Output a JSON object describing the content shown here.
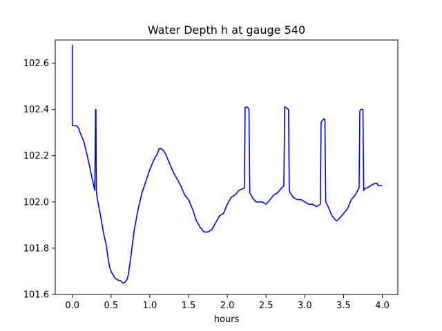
{
  "chart_data": {
    "type": "line",
    "title": "Water Depth h at gauge 540",
    "xlabel": "hours",
    "ylabel": "",
    "xlim": [
      -0.22,
      4.2
    ],
    "ylim": [
      101.6,
      102.7
    ],
    "xticks": [
      0.0,
      0.5,
      1.0,
      1.5,
      2.0,
      2.5,
      3.0,
      3.5,
      4.0
    ],
    "xtick_labels": [
      "0.0",
      "0.5",
      "1.0",
      "1.5",
      "2.0",
      "2.5",
      "3.0",
      "3.5",
      "4.0"
    ],
    "yticks": [
      101.6,
      101.8,
      102.0,
      102.2,
      102.4,
      102.6
    ],
    "ytick_labels": [
      "101.6",
      "101.8",
      "102.0",
      "102.2",
      "102.4",
      "102.6"
    ],
    "grid": false,
    "series": [
      {
        "color": "#0000ff",
        "x": [
          0.0,
          0.0,
          0.005,
          0.05,
          0.08,
          0.1,
          0.15,
          0.2,
          0.25,
          0.29,
          0.3,
          0.305,
          0.31,
          0.315,
          0.33,
          0.37,
          0.4,
          0.44,
          0.46,
          0.48,
          0.5,
          0.55,
          0.6,
          0.62,
          0.65,
          0.67,
          0.7,
          0.72,
          0.75,
          0.8,
          0.85,
          0.9,
          0.95,
          1.0,
          1.05,
          1.1,
          1.12,
          1.15,
          1.18,
          1.2,
          1.25,
          1.3,
          1.35,
          1.4,
          1.45,
          1.5,
          1.55,
          1.6,
          1.65,
          1.7,
          1.72,
          1.75,
          1.8,
          1.85,
          1.9,
          1.95,
          2.0,
          2.05,
          2.1,
          2.15,
          2.22,
          2.23,
          2.26,
          2.28,
          2.29,
          2.32,
          2.37,
          2.4,
          2.45,
          2.5,
          2.55,
          2.6,
          2.65,
          2.7,
          2.73,
          2.74,
          2.75,
          2.79,
          2.8,
          2.81,
          2.85,
          2.9,
          2.95,
          3.0,
          3.05,
          3.1,
          3.15,
          3.2,
          3.21,
          3.22,
          3.25,
          3.26,
          3.27,
          3.3,
          3.35,
          3.4,
          3.42,
          3.45,
          3.5,
          3.55,
          3.6,
          3.65,
          3.7,
          3.71,
          3.72,
          3.75,
          3.76,
          3.78,
          3.8,
          3.85,
          3.9,
          3.93,
          3.95,
          4.0
        ],
        "y": [
          102.68,
          102.33,
          102.33,
          102.33,
          102.32,
          102.3,
          102.26,
          102.19,
          102.11,
          102.05,
          102.4,
          102.4,
          102.05,
          102.03,
          102.0,
          101.93,
          101.87,
          101.81,
          101.76,
          101.72,
          101.7,
          101.67,
          101.66,
          101.66,
          101.65,
          101.65,
          101.66,
          101.68,
          101.75,
          101.88,
          101.97,
          102.04,
          102.09,
          102.14,
          102.18,
          102.21,
          102.23,
          102.23,
          102.22,
          102.21,
          102.17,
          102.13,
          102.1,
          102.07,
          102.03,
          102.01,
          101.97,
          101.92,
          101.89,
          101.87,
          101.87,
          101.87,
          101.88,
          101.91,
          101.94,
          101.95,
          101.99,
          102.02,
          102.03,
          102.05,
          102.06,
          102.41,
          102.41,
          102.4,
          102.04,
          102.02,
          102.0,
          102.0,
          102.0,
          101.99,
          102.01,
          102.03,
          102.04,
          102.06,
          102.07,
          102.41,
          102.41,
          102.4,
          102.05,
          102.04,
          102.02,
          102.01,
          102.01,
          102.0,
          101.99,
          101.99,
          101.98,
          101.99,
          102.34,
          102.35,
          102.36,
          102.35,
          102.0,
          101.98,
          101.94,
          101.92,
          101.92,
          101.93,
          101.95,
          101.97,
          102.01,
          102.03,
          102.06,
          102.39,
          102.4,
          102.4,
          102.05,
          102.06,
          102.06,
          102.07,
          102.08,
          102.08,
          102.07,
          102.07
        ]
      }
    ]
  }
}
